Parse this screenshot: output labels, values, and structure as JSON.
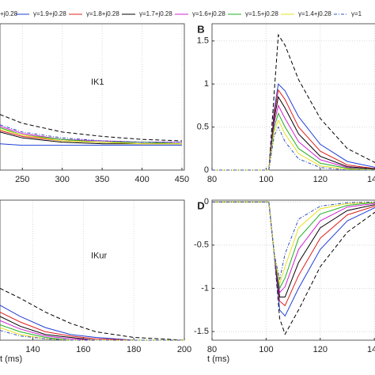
{
  "legend": [
    {
      "name": "+j0.28",
      "color": "#000000",
      "dash": "5,3"
    },
    {
      "name": "γ=1.9+j0.28",
      "color": "#1f3fd6",
      "dash": ""
    },
    {
      "name": "γ=1.8+j0.28",
      "color": "#e02020",
      "dash": ""
    },
    {
      "name": "γ=1.7+j0.28",
      "color": "#000000",
      "dash": ""
    },
    {
      "name": "γ=1.6+j0.28",
      "color": "#d020d0",
      "dash": ""
    },
    {
      "name": "γ=1.5+j0.28",
      "color": "#20b020",
      "dash": ""
    },
    {
      "name": "γ=1.4+j0.28",
      "color": "#e8e020",
      "dash": ""
    },
    {
      "name": "γ=1",
      "color": "#3050c0",
      "dash": "4,2,1,2"
    }
  ],
  "chart_data": [
    {
      "type": "line",
      "annotation": "IK1",
      "x": [
        222,
        250,
        300,
        350,
        400,
        450
      ],
      "xlim": [
        222,
        453
      ],
      "xticks": [
        250,
        300,
        350,
        400,
        450
      ],
      "ylim": [
        0,
        1
      ],
      "grid": true,
      "series": [
        {
          "values": [
            0.38,
            0.32,
            0.26,
            0.23,
            0.21,
            0.2
          ]
        },
        {
          "values": [
            0.18,
            0.17,
            0.17,
            0.17,
            0.17,
            0.17
          ]
        },
        {
          "values": [
            0.27,
            0.23,
            0.2,
            0.19,
            0.18,
            0.18
          ]
        },
        {
          "values": [
            0.26,
            0.22,
            0.19,
            0.18,
            0.18,
            0.18
          ]
        },
        {
          "values": [
            0.3,
            0.25,
            0.21,
            0.2,
            0.19,
            0.19
          ]
        },
        {
          "values": [
            0.29,
            0.24,
            0.21,
            0.19,
            0.19,
            0.18
          ]
        },
        {
          "values": [
            0.28,
            0.24,
            0.2,
            0.19,
            0.18,
            0.18
          ]
        },
        {
          "values": [
            0.31,
            0.26,
            0.22,
            0.2,
            0.19,
            0.19
          ]
        }
      ]
    },
    {
      "type": "line",
      "panel": "B",
      "x": [
        80,
        101,
        103,
        104.5,
        107,
        112,
        120,
        130,
        142
      ],
      "xlim": [
        80,
        142
      ],
      "xticks": [
        80,
        100,
        120,
        140
      ],
      "ylim": [
        0,
        1.7
      ],
      "yticks": [
        0,
        0.5,
        1,
        1.5
      ],
      "grid": true,
      "series": [
        {
          "values": [
            0,
            0,
            0.9,
            1.57,
            1.45,
            1.05,
            0.6,
            0.25,
            0.06
          ]
        },
        {
          "values": [
            0,
            0,
            0.7,
            1.0,
            0.92,
            0.62,
            0.3,
            0.1,
            0.02
          ]
        },
        {
          "values": [
            0,
            0,
            0.65,
            0.93,
            0.82,
            0.5,
            0.22,
            0.06,
            0.01
          ]
        },
        {
          "values": [
            0,
            0,
            0.6,
            0.85,
            0.72,
            0.42,
            0.16,
            0.04,
            0.01
          ]
        },
        {
          "values": [
            0,
            0,
            0.55,
            0.75,
            0.6,
            0.33,
            0.12,
            0.03,
            0
          ]
        },
        {
          "values": [
            0,
            0,
            0.5,
            0.66,
            0.5,
            0.25,
            0.08,
            0.02,
            0
          ]
        },
        {
          "values": [
            0,
            0,
            0.45,
            0.58,
            0.42,
            0.19,
            0.05,
            0.01,
            0
          ]
        },
        {
          "values": [
            0,
            0,
            0.4,
            0.5,
            0.33,
            0.13,
            0.03,
            0,
            0
          ]
        }
      ]
    },
    {
      "type": "line",
      "annotation": "IKur",
      "xlabel": "t (ms)",
      "x": [
        127,
        135,
        145,
        155,
        165,
        180,
        200
      ],
      "xlim": [
        127,
        200
      ],
      "xticks": [
        140,
        160,
        180,
        200
      ],
      "ylim": [
        0,
        1
      ],
      "grid": true,
      "series": [
        {
          "values": [
            0.37,
            0.3,
            0.2,
            0.12,
            0.06,
            0.02,
            0
          ]
        },
        {
          "values": [
            0.25,
            0.17,
            0.09,
            0.04,
            0.02,
            0,
            0
          ]
        },
        {
          "values": [
            0.2,
            0.13,
            0.06,
            0.03,
            0.01,
            0,
            0
          ]
        },
        {
          "values": [
            0.17,
            0.1,
            0.04,
            0.02,
            0,
            0,
            0
          ]
        },
        {
          "values": [
            0.14,
            0.08,
            0.03,
            0.01,
            0,
            0,
            0
          ]
        },
        {
          "values": [
            0.11,
            0.06,
            0.02,
            0,
            0,
            0,
            0
          ]
        },
        {
          "values": [
            0.09,
            0.04,
            0.01,
            0,
            0,
            0,
            0
          ]
        },
        {
          "values": [
            0.07,
            0.03,
            0.01,
            0,
            0,
            0,
            0
          ]
        }
      ]
    },
    {
      "type": "line",
      "panel": "D",
      "xlabel": "t (ms)",
      "x": [
        80,
        101,
        103,
        105,
        107,
        112,
        120,
        130,
        142
      ],
      "xlim": [
        80,
        142
      ],
      "xticks": [
        80,
        100,
        120,
        140
      ],
      "ylim": [
        -1.6,
        0.02
      ],
      "yticks": [
        0,
        -0.5,
        -1,
        -1.5
      ],
      "grid": true,
      "series": [
        {
          "values": [
            0,
            0,
            -0.6,
            -1.35,
            -1.53,
            -1.25,
            -0.75,
            -0.35,
            -0.08
          ]
        },
        {
          "values": [
            0,
            0,
            -0.6,
            -1.25,
            -1.32,
            -1.0,
            -0.55,
            -0.22,
            -0.04
          ]
        },
        {
          "values": [
            0,
            0,
            -0.6,
            -1.15,
            -1.2,
            -0.85,
            -0.42,
            -0.15,
            -0.03
          ]
        },
        {
          "values": [
            0,
            0,
            -0.6,
            -1.1,
            -1.1,
            -0.7,
            -0.3,
            -0.1,
            -0.02
          ]
        },
        {
          "values": [
            0,
            0,
            -0.6,
            -1.05,
            -0.98,
            -0.55,
            -0.22,
            -0.06,
            -0.01
          ]
        },
        {
          "values": [
            0,
            0,
            -0.6,
            -1.0,
            -0.88,
            -0.42,
            -0.14,
            -0.04,
            0
          ]
        },
        {
          "values": [
            0,
            0,
            -0.6,
            -0.95,
            -0.75,
            -0.3,
            -0.08,
            -0.02,
            0
          ]
        },
        {
          "values": [
            0,
            0,
            -0.6,
            -0.9,
            -0.6,
            -0.2,
            -0.05,
            -0.01,
            0
          ]
        }
      ]
    }
  ]
}
